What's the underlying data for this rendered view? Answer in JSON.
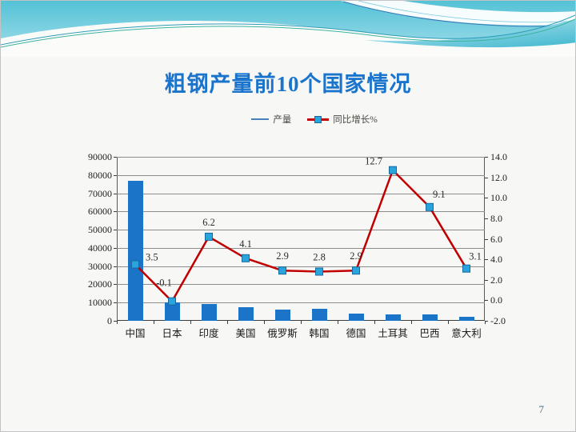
{
  "slide": {
    "title": "粗钢产量前10个国家情况",
    "page_number": "7"
  },
  "legend": {
    "items": [
      {
        "label": "产量"
      },
      {
        "label": "同比增长%"
      }
    ]
  },
  "chart_data": {
    "type": "combo",
    "title": "粗钢产量前10个国家情况",
    "categories": [
      "中国",
      "日本",
      "印度",
      "美国",
      "俄罗斯",
      "韩国",
      "德国",
      "土耳其",
      "巴西",
      "意大利"
    ],
    "series": [
      {
        "name": "产量",
        "type": "bar",
        "axis": "left",
        "values": [
          77000,
          10000,
          9200,
          7400,
          6300,
          6700,
          4000,
          3600,
          3400,
          2300
        ]
      },
      {
        "name": "同比增长%",
        "type": "line",
        "axis": "right",
        "values": [
          3.5,
          -0.1,
          6.2,
          4.1,
          2.9,
          2.8,
          2.9,
          12.7,
          9.1,
          3.1
        ],
        "data_labels": [
          "3.5",
          "-0.1",
          "6.2",
          "4.1",
          "2.9",
          "2.8",
          "2.9",
          "12.7",
          "9.1",
          "3.1"
        ]
      }
    ],
    "left_axis": {
      "min": 0,
      "max": 90000,
      "step": 10000,
      "tick_labels": [
        "90000",
        "80000",
        "70000",
        "60000",
        "50000",
        "40000",
        "30000",
        "20000",
        "10000",
        "0"
      ]
    },
    "right_axis": {
      "min": -2.0,
      "max": 14.0,
      "step": 2.0,
      "tick_labels": [
        "14.0",
        "12.0",
        "10.0",
        "8.0",
        "6.0",
        "4.0",
        "2.0",
        "0.0",
        "-2.0"
      ]
    },
    "legend_position": "top",
    "grid": true,
    "colors": {
      "bar": "#1b74c8",
      "line": "#c00000",
      "marker_fill": "#2aa4dc",
      "marker_stroke": "#156a9e",
      "grid": "#8c8c8c",
      "axis": "#3c3c3c",
      "title": "#1a74cc",
      "banner_top": "#54c2d6",
      "banner_bottom": "#9edcea"
    }
  }
}
